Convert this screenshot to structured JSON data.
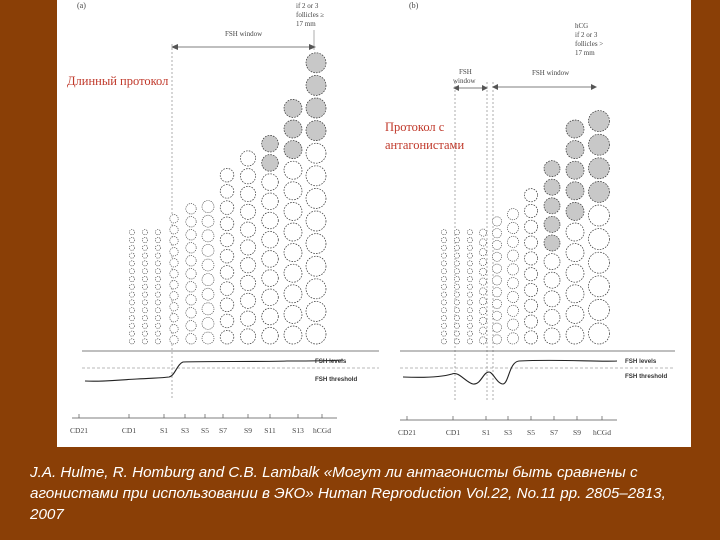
{
  "panel_a": {
    "label": "(a)",
    "hcg_note": [
      "if 2 or 3",
      "follicles ≥",
      "17 mm"
    ],
    "window_label": "FSH window",
    "title": "Длинный протокол",
    "levels_label": "FSH levels",
    "threshold_label": "FSH threshold",
    "ticks": [
      "CD21",
      "CD1",
      "S1",
      "S3",
      "S5",
      "S7",
      "S9",
      "S11",
      "S13",
      "hCGd"
    ]
  },
  "panel_b": {
    "label": "(b)",
    "hcg_note": [
      "hCG",
      "if 2 or 3",
      "follicles >",
      "17 mm"
    ],
    "small_window_label": [
      "FSH",
      "window"
    ],
    "window_label": "FSH window",
    "title": [
      "Протокол с",
      "антагонистами"
    ],
    "levels_label": "FSH levels",
    "threshold_label": "FSH threshold",
    "ticks": [
      "CD21",
      "CD1",
      "S1",
      "S3",
      "S5",
      "S7",
      "S9",
      "hCGd"
    ]
  },
  "caption": "J.A. Hulme, R. Homburg and C.B. Lambalk «Могут ли антагонисты быть сравнены с агонистами при использовании в ЭКО» Human Reproduction Vol.22, No.11 pp. 2805–2813, 2007",
  "colors": {
    "background": "#8a3f06",
    "panel": "#ffffff",
    "title_red": "#c0392b",
    "large_follicle_fill": "#c8c8c8",
    "ink": "#333333"
  }
}
